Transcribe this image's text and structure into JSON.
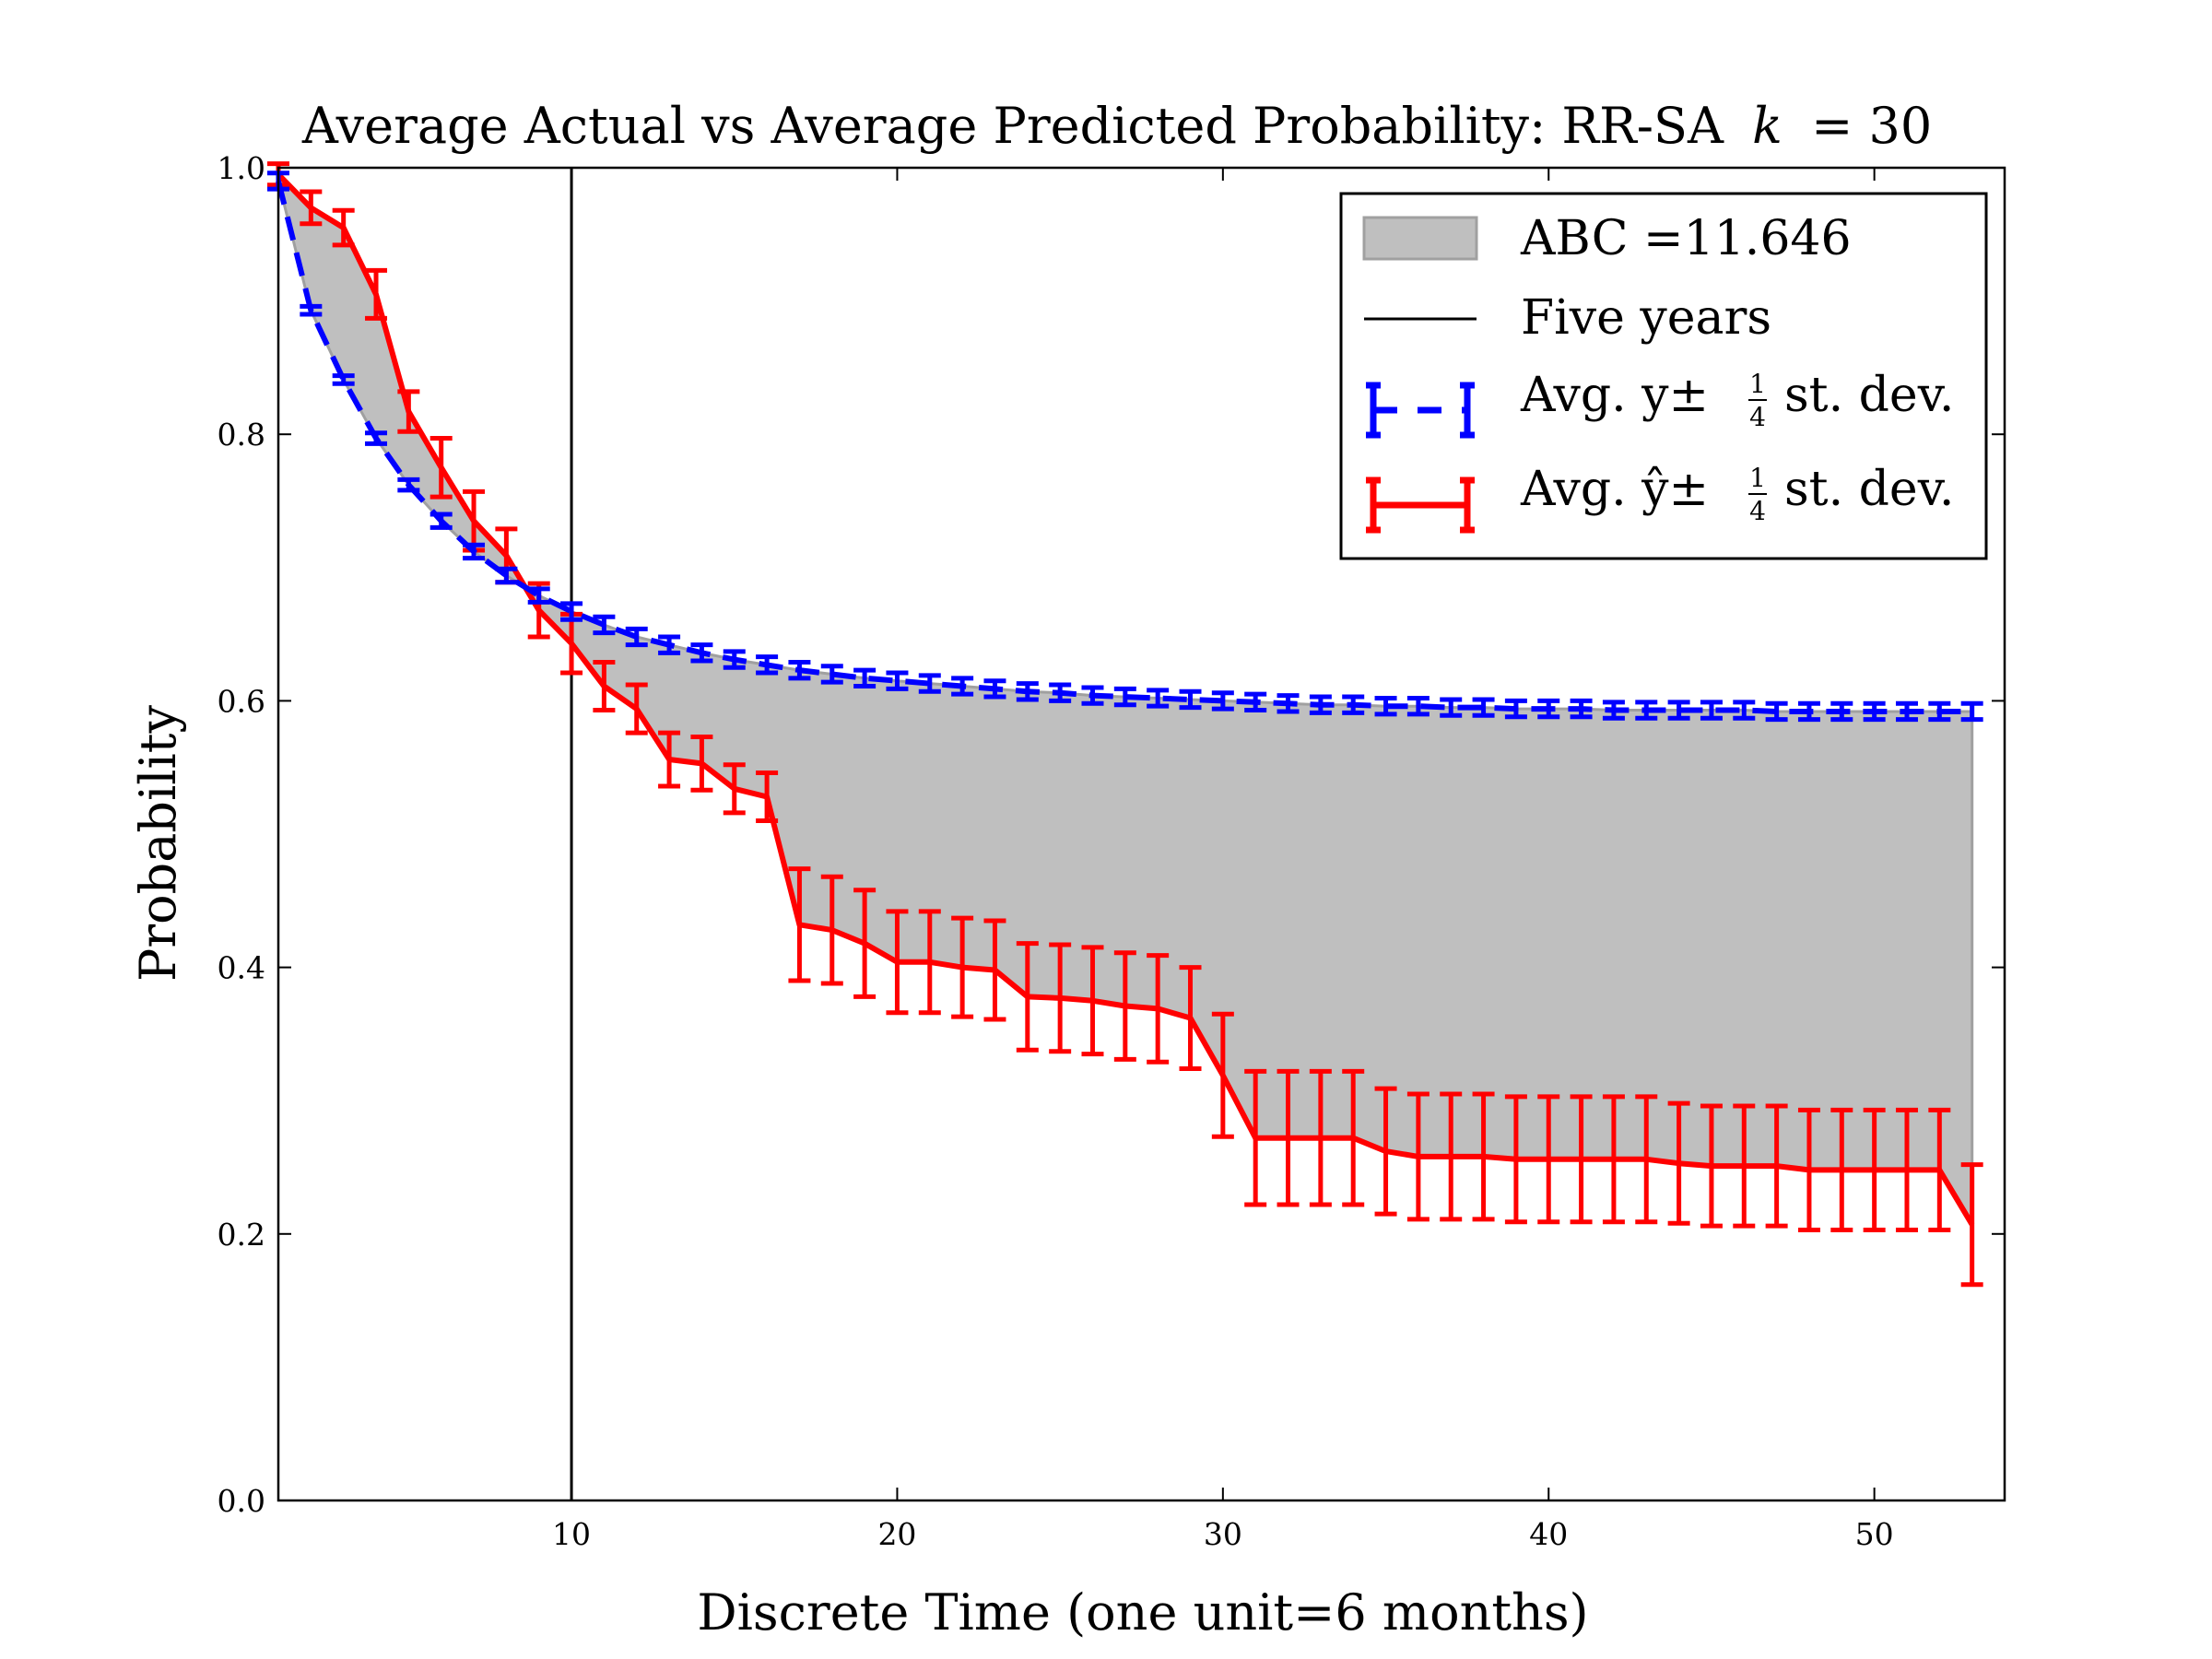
{
  "chart_data": {
    "type": "line",
    "title": "Average Actual vs Average Predicted Probability: RR-SA",
    "title_math_var": "k",
    "title_math_eq": "= 30",
    "xlabel": "Discrete Time (one unit=6 months)",
    "ylabel": "Probability",
    "xlim": [
      1,
      54
    ],
    "ylim": [
      0.0,
      1.0
    ],
    "x_ticks": [
      10,
      20,
      30,
      40,
      50
    ],
    "y_ticks": [
      0.0,
      0.2,
      0.4,
      0.6,
      0.8,
      1.0
    ],
    "y_tick_labels": [
      "0.0",
      "0.2",
      "0.4",
      "0.6",
      "0.8",
      "1.0"
    ],
    "x_tick_labels": [
      "10",
      "20",
      "30",
      "40",
      "50"
    ],
    "grid": false,
    "legend_position": "top-right",
    "vline_x": 10,
    "abc_value": "11.646",
    "x": [
      1,
      2,
      3,
      4,
      5,
      6,
      7,
      8,
      9,
      10,
      11,
      12,
      13,
      14,
      15,
      16,
      17,
      18,
      19,
      20,
      21,
      22,
      23,
      24,
      25,
      26,
      27,
      28,
      29,
      30,
      31,
      32,
      33,
      34,
      35,
      36,
      37,
      38,
      39,
      40,
      41,
      42,
      43,
      44,
      45,
      46,
      47,
      48,
      49,
      50,
      51,
      52,
      53
    ],
    "series": [
      {
        "name": "actual",
        "legend_label_prefix": "Avg. y±",
        "legend_label_suffix": "st. dev.",
        "color": "#0000ff",
        "linestyle": "dashed",
        "values": [
          0.99,
          0.893,
          0.841,
          0.797,
          0.762,
          0.735,
          0.712,
          0.694,
          0.679,
          0.667,
          0.657,
          0.648,
          0.642,
          0.636,
          0.631,
          0.627,
          0.623,
          0.62,
          0.617,
          0.615,
          0.613,
          0.611,
          0.609,
          0.607,
          0.606,
          0.604,
          0.603,
          0.602,
          0.601,
          0.6,
          0.599,
          0.598,
          0.597,
          0.597,
          0.596,
          0.596,
          0.595,
          0.595,
          0.594,
          0.594,
          0.594,
          0.593,
          0.593,
          0.593,
          0.593,
          0.593,
          0.592,
          0.592,
          0.592,
          0.592,
          0.592,
          0.592,
          0.592
        ],
        "err": [
          0.006,
          0.003,
          0.003,
          0.004,
          0.004,
          0.005,
          0.005,
          0.005,
          0.005,
          0.006,
          0.006,
          0.006,
          0.006,
          0.006,
          0.006,
          0.006,
          0.006,
          0.006,
          0.006,
          0.006,
          0.006,
          0.006,
          0.006,
          0.006,
          0.006,
          0.006,
          0.006,
          0.006,
          0.006,
          0.006,
          0.006,
          0.006,
          0.006,
          0.006,
          0.006,
          0.006,
          0.006,
          0.006,
          0.006,
          0.006,
          0.006,
          0.006,
          0.006,
          0.006,
          0.006,
          0.006,
          0.006,
          0.006,
          0.006,
          0.006,
          0.006,
          0.006,
          0.006
        ]
      },
      {
        "name": "predicted",
        "legend_label_prefix": "Avg. ŷ±",
        "legend_label_suffix": "st. dev.",
        "color": "#ff0000",
        "linestyle": "solid",
        "values": [
          0.995,
          0.97,
          0.955,
          0.905,
          0.817,
          0.775,
          0.735,
          0.709,
          0.668,
          0.643,
          0.611,
          0.594,
          0.556,
          0.553,
          0.534,
          0.528,
          0.432,
          0.428,
          0.418,
          0.404,
          0.404,
          0.4,
          0.398,
          0.378,
          0.377,
          0.375,
          0.371,
          0.369,
          0.362,
          0.319,
          0.272,
          0.272,
          0.272,
          0.272,
          0.262,
          0.258,
          0.258,
          0.258,
          0.256,
          0.256,
          0.256,
          0.256,
          0.256,
          0.253,
          0.251,
          0.251,
          0.251,
          0.248,
          0.248,
          0.248,
          0.248,
          0.248,
          0.207
        ],
        "err": [
          0.008,
          0.012,
          0.013,
          0.018,
          0.015,
          0.022,
          0.022,
          0.02,
          0.02,
          0.022,
          0.018,
          0.018,
          0.02,
          0.02,
          0.018,
          0.018,
          0.042,
          0.04,
          0.04,
          0.038,
          0.038,
          0.037,
          0.037,
          0.04,
          0.04,
          0.04,
          0.04,
          0.04,
          0.038,
          0.046,
          0.05,
          0.05,
          0.05,
          0.05,
          0.047,
          0.047,
          0.047,
          0.047,
          0.047,
          0.047,
          0.047,
          0.047,
          0.047,
          0.045,
          0.045,
          0.045,
          0.045,
          0.045,
          0.045,
          0.045,
          0.045,
          0.045,
          0.045
        ]
      }
    ]
  },
  "legend": {
    "abc_label": "ABC =11.646",
    "five_years_label": "Five years",
    "actual_prefix": "Avg. y±",
    "predicted_prefix": "Avg. ŷ±",
    "frac_num": "1",
    "frac_den": "4",
    "stdev_label": "st. dev."
  },
  "colors": {
    "actual": "#0000ff",
    "predicted": "#ff0000",
    "fill": "#bfbfbf",
    "fill_edge": "#a0a0a0",
    "axis": "#000000"
  }
}
